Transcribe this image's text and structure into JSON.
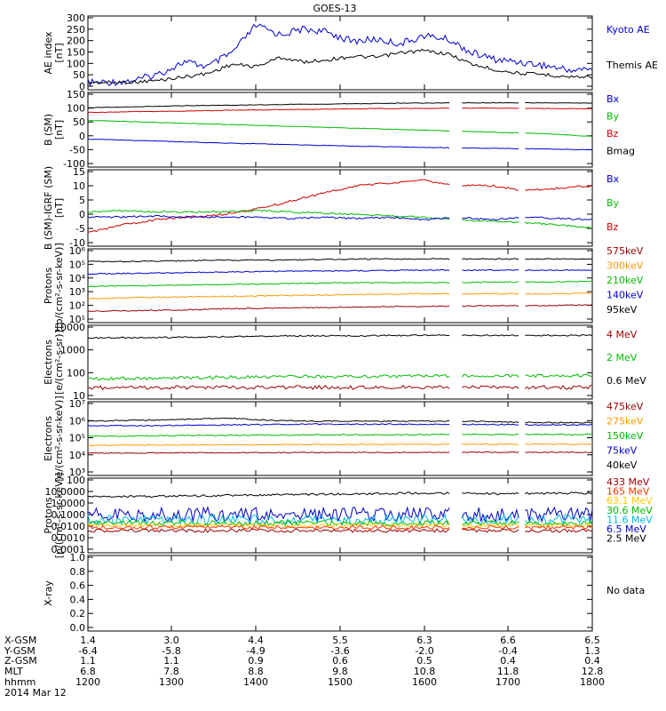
{
  "title": "GOES-13",
  "panels": [
    {
      "id": "ae",
      "ylabel": [
        "AE index",
        "[nT]"
      ],
      "ticks": [
        "300",
        "250",
        "200",
        "150",
        "100",
        "50",
        "0"
      ],
      "ylim": [
        0,
        300
      ],
      "legend": [
        {
          "label": "Kyoto AE",
          "color": "#0000cc"
        },
        {
          "label": "Themis AE",
          "color": "#000000"
        }
      ]
    },
    {
      "id": "bsm",
      "ylabel": [
        "B (SM)",
        "[nT]"
      ],
      "ticks": [
        "150",
        "100",
        "50",
        "0",
        "-50",
        "-100"
      ],
      "ylim": [
        -110,
        150
      ],
      "legend": [
        {
          "label": "Bx",
          "color": "#0000cc"
        },
        {
          "label": "By",
          "color": "#00bb00"
        },
        {
          "label": "Bz",
          "color": "#cc0000"
        },
        {
          "label": "Bmag",
          "color": "#000000"
        }
      ]
    },
    {
      "id": "bigrf",
      "ylabel": [
        "B (SM)-IGRF (SM)",
        "[nT]"
      ],
      "ticks": [
        "15",
        "10",
        "5",
        "0",
        "-5",
        "-10"
      ],
      "ylim": [
        -10,
        17
      ],
      "legend": [
        {
          "label": "Bx",
          "color": "#0000cc"
        },
        {
          "label": "By",
          "color": "#00bb00"
        },
        {
          "label": "Bz",
          "color": "#cc0000"
        }
      ]
    },
    {
      "id": "protons_kev",
      "ylabel": [
        "Protons",
        "[p/(cm²-s-sr-keV)]"
      ],
      "ticks": [
        "10⁶",
        "10⁵",
        "10⁴",
        "10³",
        "10²",
        "10¹"
      ],
      "ylim_log": [
        0.6,
        6.1
      ],
      "legend": [
        {
          "label": "575keV",
          "color": "#990000"
        },
        {
          "label": "300keV",
          "color": "#ff9900"
        },
        {
          "label": "210keV",
          "color": "#00bb00"
        },
        {
          "label": "140keV",
          "color": "#0000cc"
        },
        {
          "label": "95keV",
          "color": "#000000"
        }
      ]
    },
    {
      "id": "electrons_mev",
      "ylabel": [
        "Electrons",
        "[e/(cm²-s-sr)]"
      ],
      "ticks": [
        "10000",
        "1000",
        "100",
        "10"
      ],
      "ylim_log": [
        0.6,
        4.1
      ],
      "legend": [
        {
          "label": "4 MeV",
          "color": "#990000"
        },
        {
          "label": "2 MeV",
          "color": "#00bb00"
        },
        {
          "label": "0.6 MeV",
          "color": "#000000"
        }
      ]
    },
    {
      "id": "electrons_kev",
      "ylabel": [
        "Electrons",
        "[e/(cm²-s-sr-keV)]"
      ],
      "ticks": [
        "10⁷",
        "10⁶",
        "10⁵",
        "10⁴",
        "10³"
      ],
      "ylim_log": [
        2.6,
        7.1
      ],
      "legend": [
        {
          "label": "475keV",
          "color": "#990000"
        },
        {
          "label": "275keV",
          "color": "#ff9900"
        },
        {
          "label": "150keV",
          "color": "#00bb00"
        },
        {
          "label": "75keV",
          "color": "#0000cc"
        },
        {
          "label": "40keV",
          "color": "#000000"
        }
      ]
    },
    {
      "id": "protons_mev",
      "ylabel": [
        "Protons",
        "[p/(cm²-s-sr-keV)]"
      ],
      "ticks": [
        "100",
        "10.0000",
        "1.0000",
        "0.1000",
        "0.0100",
        "0.0010",
        "0.0001"
      ],
      "ylim_log": [
        -4.3,
        2.1
      ],
      "legend": [
        {
          "label": "433 MeV",
          "color": "#990000"
        },
        {
          "label": "165 MeV",
          "color": "#ff3300"
        },
        {
          "label": "63.1 MeV",
          "color": "#ffcc00"
        },
        {
          "label": "30.6 MeV",
          "color": "#00bb00"
        },
        {
          "label": "11.6 MeV",
          "color": "#00bbdd"
        },
        {
          "label": "6.5 MeV",
          "color": "#0000cc"
        },
        {
          "label": "2.5 MeV",
          "color": "#000000"
        }
      ]
    },
    {
      "id": "xray",
      "ylabel": [
        "X-ray",
        ""
      ],
      "ticks": [
        "1.0",
        "0.8",
        "0.6",
        "0.4",
        "0.2",
        "0.0"
      ],
      "ylim": [
        0,
        1
      ],
      "legend": [
        {
          "label": "No data",
          "color": "#000000"
        }
      ]
    }
  ],
  "footer": {
    "row_labels": [
      "X-GSM",
      "Y-GSM",
      "Z-GSM",
      "MLT",
      "hhmm"
    ],
    "date": "2014 Mar 12",
    "columns": [
      {
        "x_gsm": "1.4",
        "y_gsm": "-6.4",
        "z_gsm": "1.1",
        "mlt": "6.8",
        "hhmm": "1200"
      },
      {
        "x_gsm": "3.0",
        "y_gsm": "-5.8",
        "z_gsm": "1.1",
        "mlt": "7.8",
        "hhmm": "1300"
      },
      {
        "x_gsm": "4.4",
        "y_gsm": "-4.9",
        "z_gsm": "0.9",
        "mlt": "8.8",
        "hhmm": "1400"
      },
      {
        "x_gsm": "5.5",
        "y_gsm": "-3.6",
        "z_gsm": "0.6",
        "mlt": "9.8",
        "hhmm": "1500"
      },
      {
        "x_gsm": "6.3",
        "y_gsm": "-2.0",
        "z_gsm": "0.5",
        "mlt": "10.8",
        "hhmm": "1600"
      },
      {
        "x_gsm": "6.6",
        "y_gsm": "-0.4",
        "z_gsm": "0.4",
        "mlt": "11.8",
        "hhmm": "1700"
      },
      {
        "x_gsm": "6.5",
        "y_gsm": "1.3",
        "z_gsm": "0.4",
        "mlt": "12.8",
        "hhmm": "1800"
      }
    ]
  },
  "chart_data": {
    "type": "line",
    "title": "GOES-13",
    "x_hours": [
      12,
      18
    ],
    "data_gaps_hours": [
      [
        16.3,
        16.45
      ],
      [
        17.15,
        17.2
      ]
    ],
    "series_levels": {
      "ae_kyoto": [
        20,
        22,
        30,
        60,
        110,
        90,
        150,
        270,
        230,
        255,
        240,
        200,
        210,
        190,
        225,
        210,
        150,
        120,
        110,
        95,
        75,
        80
      ],
      "ae_themis": [
        20,
        20,
        22,
        30,
        45,
        60,
        100,
        90,
        130,
        110,
        120,
        135,
        130,
        150,
        160,
        145,
        100,
        75,
        60,
        55,
        45,
        45
      ],
      "bsm_bmag": [
        103,
        106,
        110,
        112,
        114,
        116,
        118,
        120,
        121,
        121,
        121,
        120
      ],
      "bsm_by": [
        55,
        50,
        45,
        40,
        35,
        30,
        25,
        20,
        15,
        10,
        5,
        -5
      ],
      "bsm_bz": [
        85,
        88,
        90,
        93,
        95,
        97,
        99,
        100,
        101,
        101,
        100,
        99
      ],
      "bsm_bx": [
        -15,
        -20,
        -25,
        -30,
        -34,
        -38,
        -42,
        -45,
        -48,
        -50,
        -52,
        -55
      ],
      "igrf_bz": [
        -6,
        -3,
        -1,
        0,
        1,
        3,
        6,
        9,
        12,
        13,
        14,
        12,
        12,
        10,
        11,
        12
      ],
      "igrf_by": [
        2,
        2.5,
        2,
        2,
        2,
        2.5,
        2,
        1.5,
        1,
        0.5,
        0,
        -1,
        -1.5,
        -2,
        -3,
        -4
      ],
      "igrf_bx": [
        0,
        0,
        0.5,
        0,
        0,
        0,
        -0.5,
        0,
        -0.5,
        0,
        -1,
        0,
        -1,
        0,
        -0.5,
        -1
      ],
      "pk_95": [
        5.3,
        5.3,
        5.35,
        5.4,
        5.4,
        5.45,
        5.5,
        5.5,
        5.5,
        5.5,
        5.5,
        5.5
      ],
      "pk_140": [
        4.3,
        4.35,
        4.4,
        4.45,
        4.5,
        4.55,
        4.55,
        4.6,
        4.6,
        4.6,
        4.6,
        4.6
      ],
      "pk_210": [
        3.3,
        3.35,
        3.4,
        3.45,
        3.5,
        3.55,
        3.6,
        3.6,
        3.6,
        3.65,
        3.65,
        3.7
      ],
      "pk_300": [
        2.3,
        2.4,
        2.45,
        2.5,
        2.55,
        2.6,
        2.65,
        2.7,
        2.7,
        2.7,
        2.7,
        2.75
      ],
      "pk_575": [
        1.3,
        1.35,
        1.4,
        1.5,
        1.55,
        1.6,
        1.65,
        1.7,
        1.7,
        1.75,
        1.75,
        1.8
      ],
      "em_06": [
        3.6,
        3.6,
        3.62,
        3.65,
        3.68,
        3.7,
        3.7,
        3.72,
        3.72,
        3.72,
        3.72,
        3.72
      ],
      "em_2": [
        1.5,
        1.52,
        1.55,
        1.58,
        1.6,
        1.62,
        1.62,
        1.64,
        1.65,
        1.65,
        1.66,
        1.66
      ],
      "em_4": [
        1.05,
        1.05,
        1.05,
        1.06,
        1.06,
        1.06,
        1.06,
        1.06,
        1.06,
        1.06,
        1.06,
        1.06
      ],
      "ek_40": [
        6.0,
        6.05,
        6.1,
        6.2,
        6.05,
        6.0,
        6.0,
        6.0,
        6.0,
        5.95,
        5.9,
        5.9
      ],
      "ek_75": [
        5.7,
        5.7,
        5.72,
        5.75,
        5.78,
        5.8,
        5.8,
        5.8,
        5.78,
        5.78,
        5.75,
        5.75
      ],
      "ek_150": [
        5.0,
        5.02,
        5.05,
        5.07,
        5.08,
        5.1,
        5.1,
        5.1,
        5.12,
        5.12,
        5.12,
        5.12
      ],
      "ek_275": [
        4.4,
        4.42,
        4.43,
        4.45,
        4.45,
        4.46,
        4.47,
        4.47,
        4.48,
        4.48,
        4.48,
        4.48
      ],
      "ek_475": [
        3.9,
        3.9,
        3.92,
        3.92,
        3.93,
        3.93,
        3.94,
        3.94,
        3.95,
        3.95,
        3.95,
        3.95
      ],
      "pm_25": [
        0.6,
        0.65,
        0.7,
        0.75,
        0.8,
        0.85,
        0.9,
        0.95,
        0.95,
        0.9,
        0.95,
        0.95
      ],
      "pm_65": [
        -1.0,
        -1.0,
        -1.0,
        -1.0,
        -1.0,
        -1.0,
        -1.0,
        -1.0,
        -1.0,
        -1.0,
        -1.0,
        -1.0
      ],
      "pm_116": [
        -1.5,
        -1.5,
        -1.5,
        -1.5,
        -1.5,
        -1.5,
        -1.5,
        -1.5,
        -1.5,
        -1.5,
        -1.5,
        -1.5
      ],
      "pm_306": [
        -1.8,
        -1.8,
        -1.8,
        -1.8,
        -1.8,
        -1.8,
        -1.8,
        -1.8,
        -1.8,
        -1.8,
        -1.8,
        -1.8
      ],
      "pm_631": [
        -2.0,
        -2.0,
        -2.0,
        -2.0,
        -2.0,
        -2.0,
        -2.0,
        -2.0,
        -2.0,
        -2.0,
        -2.0,
        -2.0
      ],
      "pm_165": [
        -2.2,
        -2.2,
        -2.2,
        -2.2,
        -2.2,
        -2.2,
        -2.2,
        -2.2,
        -2.2,
        -2.2,
        -2.2,
        -2.2
      ],
      "pm_433": [
        -2.5,
        -2.5,
        -2.5,
        -2.5,
        -2.5,
        -2.5,
        -2.5,
        -2.5,
        -2.5,
        -2.5,
        -2.5,
        -2.5
      ]
    }
  }
}
